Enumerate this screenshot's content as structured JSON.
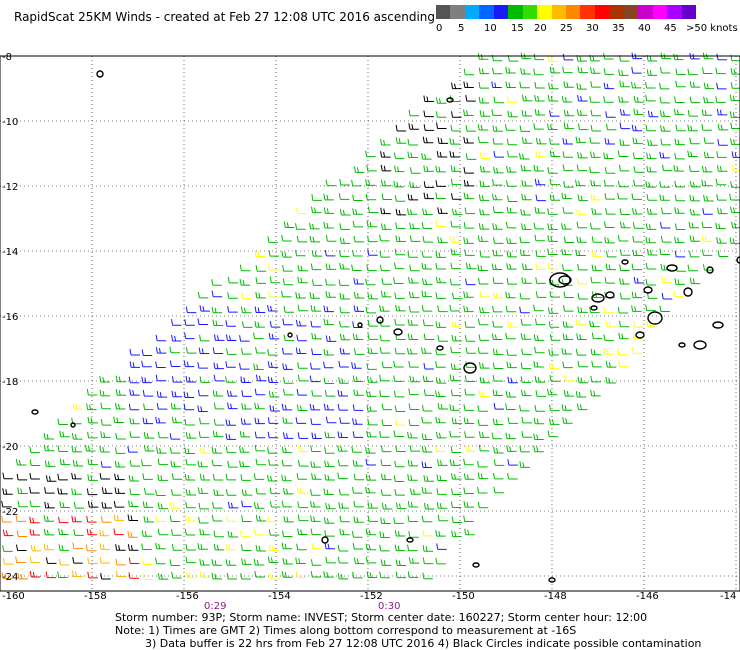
{
  "title": "RapidScat 25KM Winds - created at Feb 27 12:08 UTC 2016 ascending",
  "legend": {
    "colors": [
      "#555555",
      "#7f7f7f",
      "#00aaff",
      "#0066ff",
      "#1a1aff",
      "#00bb00",
      "#33dd00",
      "#ffff00",
      "#ffbb00",
      "#ff8800",
      "#ff3300",
      "#ff0000",
      "#aa3300",
      "#884422",
      "#cc00cc",
      "#ff00ff",
      "#aa00ff",
      "#6600cc"
    ],
    "labels": [
      "0",
      "5",
      "10",
      "15",
      "20",
      "25",
      "30",
      "35",
      "40",
      "45",
      ">50 knots"
    ]
  },
  "axes": {
    "y_labels": [
      "-8",
      "-10",
      "-12",
      "-14",
      "-16",
      "-18",
      "-20",
      "-22",
      "-24"
    ],
    "x_labels": [
      "-160",
      "-158",
      "-156",
      "-154",
      "-152",
      "-150",
      "-148",
      "-146",
      "-14"
    ],
    "time_labels": [
      "0:29",
      "0:30"
    ]
  },
  "notes": [
    "Storm number: 93P;  Storm name: INVEST;  Storm center date: 160227;  Storm center hour: 12:00",
    "Note: 1) Times are GMT  2) Times along bottom correspond to measurement at -16S",
    "3) Data buffer is 22 hrs from Feb 27 12:08 UTC 2016  4) Black Circles indicate possible contamination"
  ]
}
